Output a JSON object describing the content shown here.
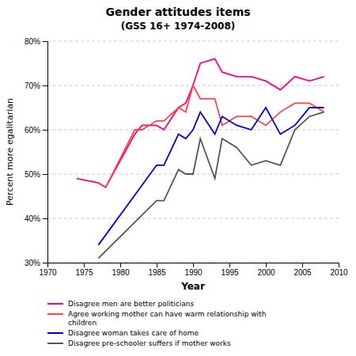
{
  "chart_data": {
    "type": "line",
    "title": "Gender attitudes items",
    "subtitle": "(GSS 16+ 1974-2008)",
    "xlabel": "Year",
    "ylabel": "Percent more egalitarian",
    "xlim": [
      1970,
      2010
    ],
    "ylim": [
      0.3,
      0.8
    ],
    "xticks": [
      1970,
      1975,
      1980,
      1985,
      1990,
      1995,
      2000,
      2005,
      2010
    ],
    "yticks": [
      {
        "value": 0.3,
        "label": "30%"
      },
      {
        "value": 0.4,
        "label": "40%"
      },
      {
        "value": 0.5,
        "label": "50%"
      },
      {
        "value": 0.6,
        "label": "60%"
      },
      {
        "value": 0.7,
        "label": "70%"
      },
      {
        "value": 0.8,
        "label": "80%"
      }
    ],
    "grid": "y",
    "legend": "bottom",
    "series": [
      {
        "name": "Disagree men are better politicians",
        "color": "#FF007F",
        "x": [
          1974,
          1977,
          1978,
          1982,
          1983,
          1985,
          1986,
          1988,
          1989,
          1990,
          1991,
          1993,
          1994,
          1996,
          1998,
          2000,
          2002,
          2004,
          2006,
          2008
        ],
        "values": [
          0.49,
          0.48,
          0.47,
          0.59,
          0.61,
          0.61,
          0.6,
          0.65,
          0.66,
          0.7,
          0.75,
          0.76,
          0.73,
          0.72,
          0.72,
          0.71,
          0.69,
          0.72,
          0.71,
          0.72
        ]
      },
      {
        "name": "Agree working mother can have warm relationship with\nchildren",
        "color": "#FF4444",
        "x": [
          1977,
          1978,
          1982,
          1983,
          1985,
          1986,
          1988,
          1989,
          1990,
          1991,
          1993,
          1994,
          1996,
          1998,
          2000,
          2002,
          2004,
          2006,
          2008
        ],
        "values": [
          0.48,
          0.47,
          0.6,
          0.6,
          0.62,
          0.62,
          0.65,
          0.64,
          0.7,
          0.67,
          0.67,
          0.61,
          0.63,
          0.63,
          0.61,
          0.64,
          0.66,
          0.66,
          0.64
        ]
      },
      {
        "name": "Disagree woman takes care of home",
        "color": "#0000CC",
        "x": [
          1977,
          1985,
          1986,
          1988,
          1989,
          1990,
          1991,
          1993,
          1994,
          1996,
          1998,
          2000,
          2002,
          2004,
          2006,
          2008
        ],
        "values": [
          0.34,
          0.52,
          0.52,
          0.59,
          0.58,
          0.6,
          0.64,
          0.59,
          0.63,
          0.61,
          0.6,
          0.65,
          0.59,
          0.61,
          0.65,
          0.65
        ]
      },
      {
        "name": "Disagree pre-schooler suffers if mother works",
        "color": "#555555",
        "x": [
          1977,
          1985,
          1986,
          1988,
          1989,
          1990,
          1991,
          1993,
          1994,
          1996,
          1998,
          2000,
          2002,
          2004,
          2006,
          2008
        ],
        "values": [
          0.31,
          0.44,
          0.44,
          0.51,
          0.5,
          0.5,
          0.58,
          0.49,
          0.58,
          0.56,
          0.52,
          0.53,
          0.52,
          0.6,
          0.63,
          0.64
        ]
      }
    ]
  }
}
